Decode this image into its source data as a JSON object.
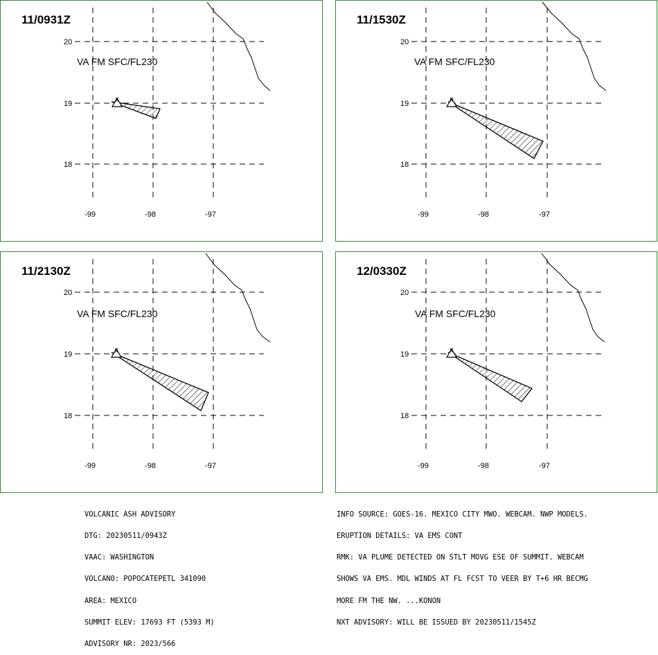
{
  "colors": {
    "frame": "#2e8b2e",
    "grid": "#000000",
    "plume_hatch": "#000000",
    "coast": "#000000"
  },
  "grid": {
    "lat_labels": [
      "20",
      "19",
      "18"
    ],
    "lon_labels": [
      "-99",
      "-98",
      "-97"
    ]
  },
  "panels": [
    {
      "time": "11/0931Z",
      "level": "VA FM SFC/FL230"
    },
    {
      "time": "11/1530Z",
      "level": "VA FM SFC/FL230"
    },
    {
      "time": "11/2130Z",
      "level": "VA FM SFC/FL230"
    },
    {
      "time": "12/0330Z",
      "level": "VA FM SFC/FL230"
    }
  ],
  "volcano_marker": "x",
  "advisory": {
    "left_lines": [
      "VOLCANIC ASH ADVISORY",
      "DTG: 20230511/0943Z",
      "VAAC: WASHINGTON",
      "VOLCANO: POPOCATEPETL 341090",
      "AREA: MEXICO",
      "SUMMIT ELEV: 17693 FT (5393 M)",
      "ADVISORY NR: 2023/566"
    ],
    "right_lines": [
      "INFO SOURCE: GOES-16. MEXICO CITY MWO. WEBCAM. NWP MODELS.",
      "ERUPTION DETAILS: VA EMS CONT",
      "RMK: VA PLUME DETECTED ON STLT MOVG ESE OF SUMMIT. WEBCAM",
      "SHOWS VA EMS. MDL WINDS AT FL FCST TO VEER BY T+6 HR BECMG",
      "MORE FM THE NW. ...KONON",
      "NXT ADVISORY: WILL BE ISSUED BY 20230511/1545Z"
    ]
  }
}
